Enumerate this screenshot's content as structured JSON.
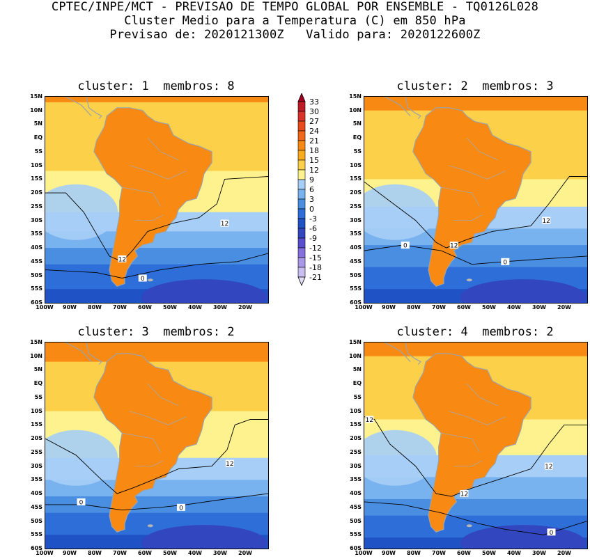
{
  "header": {
    "line1": "CPTEC/INPE/MCT - PREVISAO DE TEMPO GLOBAL POR ENSEMBLE - TQ0126L028",
    "line2": "Cluster Medio para a Temperatura (C) em 850 hPa",
    "line3": "Previsao de: 2020121300Z   Valido para: 2020122600Z"
  },
  "lat_labels": [
    "15N",
    "10N",
    "5N",
    "EQ",
    "5S",
    "10S",
    "15S",
    "20S",
    "25S",
    "30S",
    "35S",
    "40S",
    "45S",
    "50S",
    "55S",
    "60S"
  ],
  "lon_labels": [
    "100W",
    "90W",
    "80W",
    "70W",
    "60W",
    "50W",
    "40W",
    "30W",
    "20W"
  ],
  "panels": [
    {
      "title": "cluster: 1  membros: 8",
      "contours": [
        "12",
        "12",
        "0"
      ]
    },
    {
      "title": "cluster: 2  membros: 3",
      "contours": [
        "12",
        "12",
        "0",
        "0"
      ]
    },
    {
      "title": "cluster: 3  membros: 2",
      "contours": [
        "12",
        "0",
        "0"
      ]
    },
    {
      "title": "cluster: 4  membros: 2",
      "contours": [
        "12",
        "12",
        "12",
        "0"
      ]
    }
  ],
  "colorbar": {
    "labels": [
      "33",
      "30",
      "27",
      "24",
      "21",
      "18",
      "15",
      "12",
      "9",
      "6",
      "3",
      "0",
      "-3",
      "-6",
      "-9",
      "-12",
      "-15",
      "-18",
      "-21"
    ],
    "colors": [
      "#a0001e",
      "#be1a26",
      "#d8322a",
      "#e84a1c",
      "#f2661a",
      "#f88a14",
      "#fbab1e",
      "#fdd04a",
      "#fef28e",
      "#a6cef6",
      "#78b2ef",
      "#4a8ee2",
      "#2e6ed8",
      "#1f52c4",
      "#3246c0",
      "#5a4ed0",
      "#8470de",
      "#a898e8",
      "#c8bef2",
      "#e2dcf8"
    ]
  }
}
